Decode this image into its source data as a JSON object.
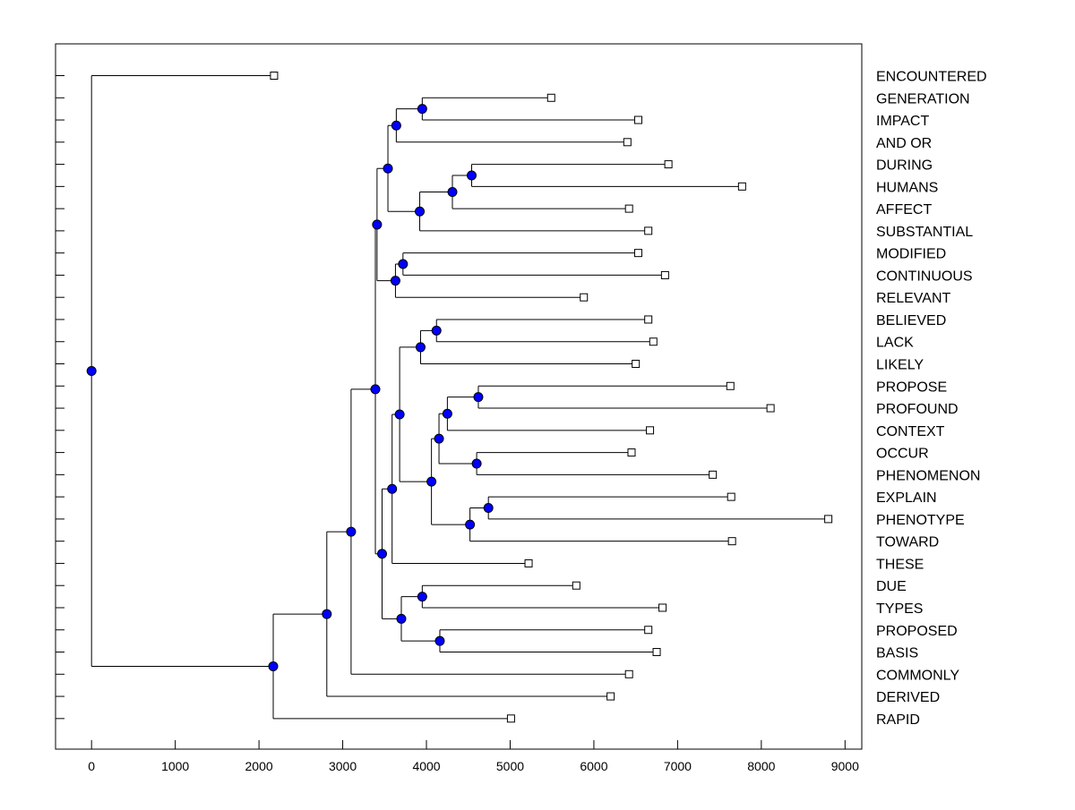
{
  "chart_data": {
    "type": "dendrogram",
    "title": "",
    "xlabel": "",
    "ylabel": "",
    "xlim": [
      -430,
      9200
    ],
    "x_ticks": [
      0,
      1000,
      2000,
      3000,
      4000,
      5000,
      6000,
      7000,
      8000,
      9000
    ],
    "grid": false,
    "node_color": "#0000ff",
    "line_color": "#000000",
    "leaves": [
      {
        "label": "ENCOUNTERED",
        "value": 2180
      },
      {
        "label": "GENERATION",
        "value": 5490
      },
      {
        "label": "IMPACT",
        "value": 6530
      },
      {
        "label": "AND OR",
        "value": 6400
      },
      {
        "label": "DURING",
        "value": 6890
      },
      {
        "label": "HUMANS",
        "value": 7770
      },
      {
        "label": "AFFECT",
        "value": 6420
      },
      {
        "label": "SUBSTANTIAL",
        "value": 6650
      },
      {
        "label": "MODIFIED",
        "value": 6530
      },
      {
        "label": "CONTINUOUS",
        "value": 6850
      },
      {
        "label": "RELEVANT",
        "value": 5880
      },
      {
        "label": "BELIEVED",
        "value": 6650
      },
      {
        "label": "LACK",
        "value": 6710
      },
      {
        "label": "LIKELY",
        "value": 6500
      },
      {
        "label": "PROPOSE",
        "value": 7630
      },
      {
        "label": "PROFOUND",
        "value": 8110
      },
      {
        "label": "CONTEXT",
        "value": 6670
      },
      {
        "label": "OCCUR",
        "value": 6450
      },
      {
        "label": "PHENOMENON",
        "value": 7420
      },
      {
        "label": "EXPLAIN",
        "value": 7640
      },
      {
        "label": "PHENOTYPE",
        "value": 8800
      },
      {
        "label": "TOWARD",
        "value": 7650
      },
      {
        "label": "THESE",
        "value": 5220
      },
      {
        "label": "DUE",
        "value": 5790
      },
      {
        "label": "TYPES",
        "value": 6820
      },
      {
        "label": "PROPOSED",
        "value": 6650
      },
      {
        "label": "BASIS",
        "value": 6750
      },
      {
        "label": "COMMONLY",
        "value": 6420
      },
      {
        "label": "DERIVED",
        "value": 6200
      },
      {
        "label": "RAPID",
        "value": 5010
      }
    ],
    "merges": [
      {
        "id": "n1",
        "height": 3950,
        "children": [
          "GENERATION",
          "IMPACT"
        ]
      },
      {
        "id": "n2",
        "height": 3640,
        "children": [
          "n1",
          "AND OR"
        ]
      },
      {
        "id": "n3",
        "height": 4540,
        "children": [
          "DURING",
          "HUMANS"
        ]
      },
      {
        "id": "n4",
        "height": 4310,
        "children": [
          "n3",
          "AFFECT"
        ]
      },
      {
        "id": "n5",
        "height": 3920,
        "children": [
          "n4",
          "SUBSTANTIAL"
        ]
      },
      {
        "id": "n6",
        "height": 3540,
        "children": [
          "n2",
          "n5"
        ]
      },
      {
        "id": "n7",
        "height": 3720,
        "children": [
          "MODIFIED",
          "CONTINUOUS"
        ]
      },
      {
        "id": "n8",
        "height": 3630,
        "children": [
          "n7",
          "RELEVANT"
        ]
      },
      {
        "id": "n9",
        "height": 3410,
        "children": [
          "n6",
          "n8"
        ]
      },
      {
        "id": "n10",
        "height": 4120,
        "children": [
          "BELIEVED",
          "LACK"
        ]
      },
      {
        "id": "n11",
        "height": 3930,
        "children": [
          "n10",
          "LIKELY"
        ]
      },
      {
        "id": "n12",
        "height": 4620,
        "children": [
          "PROPOSE",
          "PROFOUND"
        ]
      },
      {
        "id": "n13",
        "height": 4250,
        "children": [
          "n12",
          "CONTEXT"
        ]
      },
      {
        "id": "n14",
        "height": 4600,
        "children": [
          "OCCUR",
          "PHENOMENON"
        ]
      },
      {
        "id": "n15",
        "height": 4150,
        "children": [
          "n13",
          "n14"
        ]
      },
      {
        "id": "n16",
        "height": 4740,
        "children": [
          "EXPLAIN",
          "PHENOTYPE"
        ]
      },
      {
        "id": "n17",
        "height": 4520,
        "children": [
          "n16",
          "TOWARD"
        ]
      },
      {
        "id": "n18",
        "height": 4060,
        "children": [
          "n15",
          "n17"
        ]
      },
      {
        "id": "n19",
        "height": 3680,
        "children": [
          "n11",
          "n18"
        ]
      },
      {
        "id": "n20",
        "height": 3590,
        "children": [
          "n19",
          "THESE"
        ]
      },
      {
        "id": "n21",
        "height": 3950,
        "children": [
          "DUE",
          "TYPES"
        ]
      },
      {
        "id": "n22",
        "height": 4160,
        "children": [
          "PROPOSED",
          "BASIS"
        ]
      },
      {
        "id": "n23",
        "height": 3700,
        "children": [
          "n21",
          "n22"
        ]
      },
      {
        "id": "n24",
        "height": 3470,
        "children": [
          "n20",
          "n23"
        ]
      },
      {
        "id": "n25",
        "height": 3390,
        "children": [
          "n9",
          "n24"
        ]
      },
      {
        "id": "n26",
        "height": 3100,
        "children": [
          "n25",
          "COMMONLY"
        ]
      },
      {
        "id": "n27",
        "height": 2810,
        "children": [
          "n26",
          "DERIVED"
        ]
      },
      {
        "id": "n28",
        "height": 2170,
        "children": [
          "n27",
          "RAPID"
        ]
      },
      {
        "id": "n29",
        "height": 0,
        "children": [
          "ENCOUNTERED",
          "n28"
        ]
      }
    ]
  }
}
